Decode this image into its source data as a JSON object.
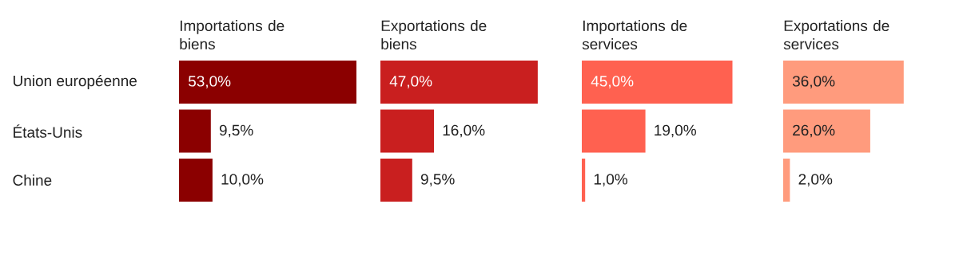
{
  "chart_data": [
    {
      "type": "bar",
      "orientation": "horizontal",
      "title": "Importations de biens",
      "categories": [
        "Union européenne",
        "États-Unis",
        "Chine"
      ],
      "values": [
        53.0,
        9.5,
        10.0
      ],
      "value_labels": [
        "53,0%",
        "9,5%",
        "10,0%"
      ],
      "color": "#8b0000",
      "tick_labels": "y"
    },
    {
      "type": "bar",
      "orientation": "horizontal",
      "title": "Exportations de biens",
      "values": [
        47.0,
        16.0,
        9.5
      ],
      "value_labels": [
        "47,0%",
        "16,0%",
        "9,5%"
      ],
      "color": "#c91f1f",
      "tick_labels": false
    },
    {
      "type": "bar",
      "orientation": "horizontal",
      "title": "Importations de services",
      "values": [
        45.0,
        19.0,
        1.0
      ],
      "value_labels": [
        "45,0%",
        "19,0%",
        "1,0%"
      ],
      "color": "#ff6150",
      "tick_labels": false
    },
    {
      "type": "bar",
      "orientation": "horizontal",
      "title": "Exportations de services",
      "values": [
        36.0,
        26.0,
        2.0
      ],
      "value_labels": [
        "36,0%",
        "26,0%",
        "2,0%"
      ],
      "color": "#ff9b7d",
      "tick_labels": false
    }
  ]
}
